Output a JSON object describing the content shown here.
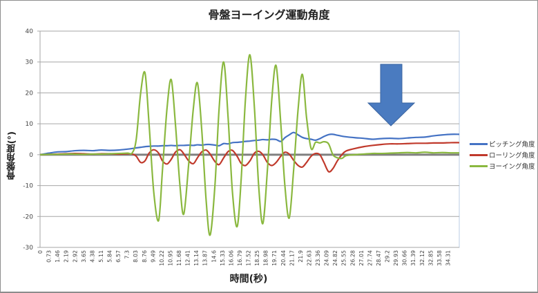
{
  "chart_data": {
    "type": "line",
    "title": "骨盤ヨーイング運動角度",
    "xlabel": "時間(秒)",
    "ylabel": "骨盤角度(°)",
    "ylim": [
      -30,
      40
    ],
    "yticks": [
      40,
      30,
      20,
      10,
      0,
      -10,
      -20,
      -30
    ],
    "grid": true,
    "legend_position": "right",
    "x_tick_labels": [
      "0",
      "0.73",
      "1.46",
      "2.19",
      "2.92",
      "3.65",
      "4.38",
      "5.11",
      "5.84",
      "6.57",
      "7.3",
      "8.03",
      "8.76",
      "9.49",
      "10.22",
      "10.95",
      "11.68",
      "12.41",
      "13.14",
      "13.87",
      "14.6",
      "15.33",
      "16.06",
      "16.79",
      "17.52",
      "18.25",
      "18.98",
      "19.71",
      "20.44",
      "21.17",
      "21.9",
      "22.63",
      "23.36",
      "24.09",
      "24.82",
      "25.55",
      "26.28",
      "27.01",
      "27.74",
      "28.47",
      "29.2",
      "29.93",
      "30.66",
      "31.39",
      "32.12",
      "32.85",
      "33.58",
      "34.31"
    ],
    "x": [
      0,
      0.73,
      1.46,
      2.19,
      2.92,
      3.65,
      4.38,
      5.11,
      5.84,
      6.57,
      7.3,
      7.7,
      8.03,
      8.4,
      8.76,
      9.1,
      9.49,
      9.9,
      10.22,
      10.6,
      10.95,
      11.3,
      11.68,
      12.0,
      12.41,
      12.8,
      13.14,
      13.5,
      13.87,
      14.2,
      14.6,
      14.95,
      15.33,
      15.7,
      16.06,
      16.45,
      16.79,
      17.15,
      17.52,
      17.9,
      18.25,
      18.6,
      18.98,
      19.35,
      19.71,
      20.1,
      20.44,
      20.8,
      21.17,
      21.55,
      21.9,
      22.25,
      22.63,
      23.0,
      23.36,
      23.7,
      24.09,
      24.45,
      24.82,
      25.2,
      25.55,
      26.28,
      27.01,
      27.74,
      28.47,
      29.2,
      29.93,
      30.66,
      31.39,
      32.12,
      32.85,
      33.58,
      34.31,
      35.0
    ],
    "series": [
      {
        "name": "ピッチング角度",
        "color": "#4472c4",
        "values": [
          0,
          0.5,
          0.9,
          1.0,
          1.3,
          1.4,
          1.3,
          1.5,
          1.4,
          1.5,
          1.8,
          2.0,
          2.2,
          2.4,
          2.6,
          2.7,
          2.8,
          2.8,
          2.9,
          2.9,
          3.0,
          2.9,
          3.0,
          3.0,
          3.1,
          3.0,
          3.2,
          3.1,
          3.3,
          3.3,
          3.1,
          2.9,
          3.6,
          3.5,
          3.9,
          4.0,
          4.1,
          4.3,
          4.4,
          4.6,
          4.7,
          4.9,
          4.8,
          5.0,
          4.9,
          4.3,
          5.5,
          6.4,
          7.2,
          6.4,
          5.6,
          5.2,
          5.0,
          4.7,
          5.2,
          5.9,
          6.5,
          6.6,
          6.3,
          6.0,
          5.8,
          5.5,
          5.3,
          5.0,
          5.2,
          5.3,
          5.2,
          5.4,
          5.6,
          5.7,
          6.1,
          6.4,
          6.6,
          6.6
        ]
      },
      {
        "name": "ローリング角度",
        "color": "#c0392b",
        "values": [
          0,
          0.1,
          0.2,
          0.3,
          0.4,
          0.3,
          0.2,
          0.3,
          0.3,
          0.2,
          0.3,
          0.2,
          -0.5,
          -2.5,
          -2.0,
          0.5,
          1.6,
          0.5,
          -2.0,
          -3.0,
          -1.5,
          0.8,
          1.6,
          0.3,
          -2.0,
          -2.9,
          -1.0,
          0.9,
          1.5,
          0.2,
          -2.2,
          -3.2,
          -1.0,
          1.0,
          1.4,
          -0.5,
          -2.8,
          -3.5,
          -2.0,
          0.5,
          1.1,
          0.0,
          -2.5,
          -3.5,
          -2.5,
          -0.5,
          0.8,
          0.2,
          -1.8,
          -3.5,
          -4.0,
          -2.5,
          -0.5,
          0.4,
          0.0,
          -2.5,
          -5.5,
          -4.5,
          -2.0,
          0.0,
          1.2,
          2.0,
          2.6,
          3.0,
          3.3,
          3.5,
          3.5,
          3.6,
          3.7,
          3.7,
          3.8,
          3.8,
          3.9,
          3.9
        ]
      },
      {
        "name": "ヨーイング角度",
        "color": "#8ab83f",
        "values": [
          0,
          0.1,
          0.1,
          0.2,
          0.2,
          0.1,
          0.2,
          0.2,
          0.3,
          0.4,
          0.5,
          0.6,
          5.0,
          20.0,
          26.5,
          10.0,
          -12.0,
          -21.3,
          -5.0,
          15.0,
          24.3,
          10.0,
          -10.0,
          -19.2,
          -3.0,
          15.0,
          23.2,
          8.0,
          -15.0,
          -26.0,
          -10.0,
          15.0,
          30.0,
          12.0,
          -12.0,
          -23.3,
          -8.0,
          18.0,
          32.3,
          15.0,
          -10.0,
          -22.3,
          -5.0,
          18.0,
          28.8,
          10.0,
          -10.0,
          -20.5,
          -5.0,
          15.0,
          26.0,
          12.0,
          2.0,
          4.0,
          3.8,
          4.2,
          3.5,
          0.0,
          -1.0,
          -1.2,
          -0.3,
          0.0,
          0.2,
          0.4,
          0.4,
          0.5,
          0.6,
          0.7,
          0.6,
          0.8,
          0.6,
          0.7,
          0.6,
          0.6
        ]
      }
    ]
  },
  "annotation": {
    "shape": "down-arrow",
    "color": "#4a7bc0"
  }
}
